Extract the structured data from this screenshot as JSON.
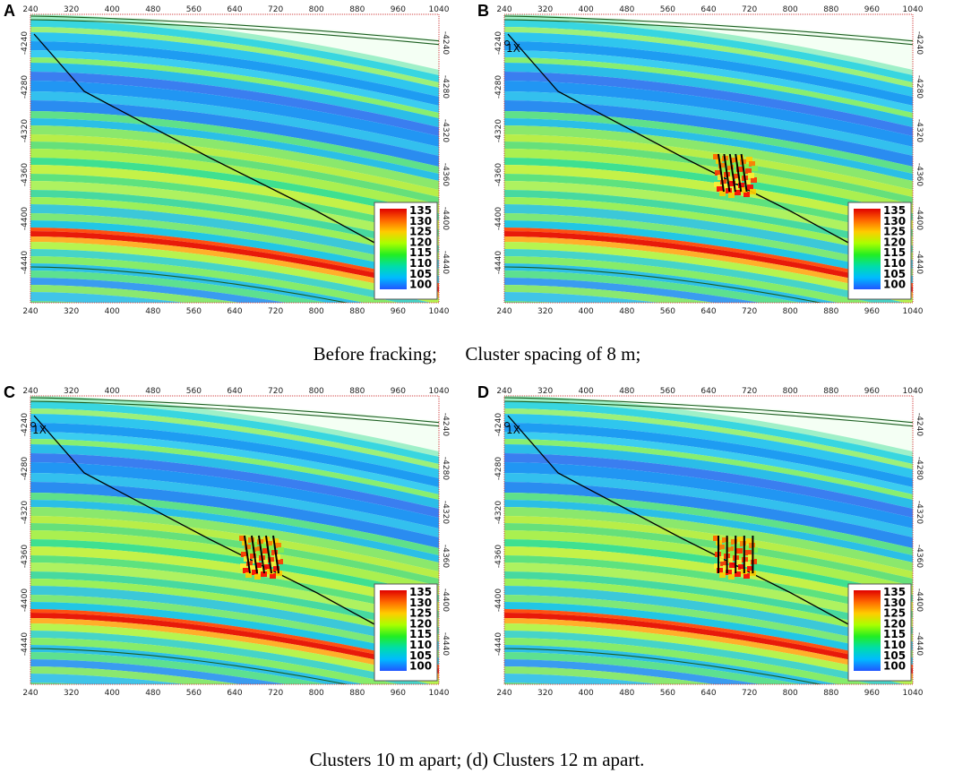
{
  "panels": [
    {
      "letter": "A",
      "fracks": null
    },
    {
      "letter": "B",
      "fracks": {
        "spacing_m": 8
      }
    },
    {
      "letter": "C",
      "fracks": {
        "spacing_m": 10
      }
    },
    {
      "letter": "D",
      "fracks": {
        "spacing_m": 12
      }
    }
  ],
  "x_ticks": [
    "240",
    "320",
    "400",
    "480",
    "560",
    "640",
    "720",
    "800",
    "880",
    "960",
    "1040"
  ],
  "y_ticks": [
    "-4240",
    "-4280",
    "-4320",
    "-4360",
    "-4400",
    "-4440"
  ],
  "colorbar": {
    "labels": [
      "135",
      "130",
      "125",
      "120",
      "115",
      "110",
      "105",
      "100"
    ],
    "colors": [
      "#e00000",
      "#ff6600",
      "#ffcc00",
      "#aaff00",
      "#22ee22",
      "#00ddaa",
      "#00bbff",
      "#2255ff"
    ]
  },
  "well_marker": "1X",
  "captions": {
    "top": "Before fracking;      Cluster spacing of 8 m;",
    "bottom": "Clusters 10 m apart; (d) Clusters 12 m apart."
  }
}
